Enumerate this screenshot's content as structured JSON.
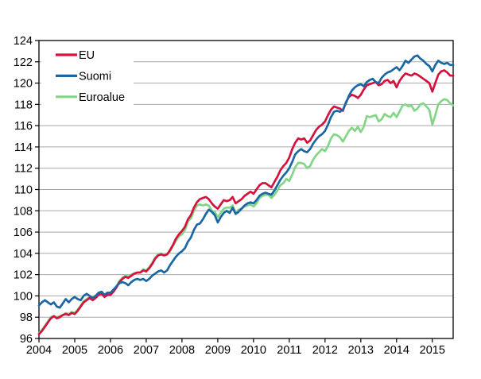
{
  "chart_data": {
    "type": "line",
    "title": "",
    "x_start": "2004-01",
    "x_end": "2015-08",
    "x_unit": "month",
    "x_tick_labels": [
      "2004",
      "2005",
      "2006",
      "2007",
      "2008",
      "2009",
      "2010",
      "2011",
      "2012",
      "2013",
      "2014",
      "2015"
    ],
    "y_tick_labels": [
      "96",
      "98",
      "100",
      "102",
      "104",
      "106",
      "108",
      "110",
      "112",
      "114",
      "116",
      "118",
      "120",
      "122",
      "124"
    ],
    "ylim": [
      96,
      124
    ],
    "y_tick_step": 2,
    "grid": "horizontal",
    "legend_position": "top-left-inside",
    "axis_color": "#000000",
    "gridline_color": "#a8a8a8",
    "background_color": "#ffffff",
    "series": [
      {
        "name": "Euroalue",
        "legend_order": 3,
        "color": "#84d687",
        "values": [
          96.5,
          96.8,
          97.2,
          97.6,
          98.0,
          98.1,
          98.0,
          98.1,
          98.2,
          98.4,
          98.3,
          98.5,
          98.4,
          98.7,
          99.1,
          99.5,
          99.7,
          99.9,
          99.7,
          99.9,
          100.2,
          100.3,
          100.0,
          100.2,
          100.2,
          100.5,
          100.9,
          101.4,
          101.7,
          101.9,
          101.8,
          102.0,
          102.1,
          102.2,
          102.2,
          102.5,
          102.4,
          102.7,
          103.1,
          103.6,
          103.9,
          104.0,
          103.8,
          103.9,
          104.2,
          104.7,
          105.2,
          105.6,
          105.8,
          106.2,
          107.0,
          107.3,
          108.0,
          108.5,
          108.6,
          108.5,
          108.6,
          108.5,
          108.0,
          107.9,
          107.4,
          107.8,
          108.2,
          108.3,
          108.3,
          108.5,
          107.8,
          108.1,
          108.2,
          108.4,
          108.5,
          108.6,
          108.4,
          108.7,
          109.2,
          109.4,
          109.5,
          109.5,
          109.2,
          109.5,
          109.9,
          110.4,
          110.6,
          111.0,
          110.8,
          111.4,
          112.1,
          112.5,
          112.5,
          112.4,
          112.0,
          112.2,
          112.8,
          113.2,
          113.5,
          113.8,
          113.6,
          114.1,
          114.8,
          115.2,
          115.1,
          114.9,
          114.5,
          115.0,
          115.5,
          115.8,
          115.5,
          115.9,
          115.4,
          115.9,
          116.9,
          116.8,
          116.9,
          117.0,
          116.4,
          116.6,
          117.1,
          116.9,
          116.8,
          117.2,
          116.8,
          117.3,
          117.9,
          118.0,
          117.8,
          117.9,
          117.4,
          117.6,
          118.0,
          118.1,
          117.8,
          117.5,
          116.1,
          117.0,
          118.0,
          118.3,
          118.5,
          118.4,
          118.1,
          117.9
        ]
      },
      {
        "name": "EU",
        "legend_order": 1,
        "color": "#d5123e",
        "values": [
          96.4,
          96.7,
          97.1,
          97.5,
          97.9,
          98.1,
          97.9,
          98.0,
          98.2,
          98.3,
          98.2,
          98.4,
          98.3,
          98.6,
          99.0,
          99.4,
          99.6,
          99.8,
          99.6,
          99.8,
          100.1,
          100.2,
          99.9,
          100.1,
          100.1,
          100.4,
          100.8,
          101.3,
          101.6,
          101.8,
          101.7,
          101.9,
          102.1,
          102.2,
          102.2,
          102.4,
          102.3,
          102.6,
          103.0,
          103.5,
          103.8,
          103.9,
          103.8,
          103.9,
          104.3,
          104.8,
          105.4,
          105.8,
          106.1,
          106.5,
          107.2,
          107.6,
          108.3,
          108.8,
          109.1,
          109.2,
          109.3,
          109.1,
          108.7,
          108.4,
          108.2,
          108.6,
          109.0,
          108.9,
          109.0,
          109.3,
          108.7,
          108.9,
          109.1,
          109.4,
          109.6,
          109.8,
          109.6,
          110.0,
          110.4,
          110.6,
          110.6,
          110.4,
          110.2,
          110.7,
          111.2,
          111.8,
          112.2,
          112.5,
          113.0,
          113.8,
          114.4,
          114.8,
          114.7,
          114.8,
          114.4,
          114.6,
          115.1,
          115.6,
          115.9,
          116.1,
          116.4,
          117.0,
          117.5,
          117.8,
          117.7,
          117.6,
          117.4,
          118.2,
          118.7,
          118.9,
          118.8,
          118.6,
          118.9,
          119.4,
          119.8,
          119.9,
          120.0,
          120.1,
          119.8,
          119.9,
          120.2,
          120.3,
          120.0,
          120.2,
          119.6,
          120.2,
          120.6,
          120.9,
          120.8,
          120.7,
          120.9,
          120.8,
          120.6,
          120.4,
          120.2,
          120.0,
          119.2,
          120.0,
          120.8,
          121.1,
          121.2,
          121.0,
          120.7,
          120.7
        ]
      },
      {
        "name": "Suomi",
        "legend_order": 2,
        "color": "#1b67a5",
        "values": [
          99.1,
          99.4,
          99.6,
          99.4,
          99.2,
          99.4,
          99.0,
          98.9,
          99.3,
          99.7,
          99.4,
          99.7,
          99.9,
          99.7,
          99.6,
          100.0,
          100.2,
          100.0,
          99.8,
          100.0,
          100.3,
          100.4,
          100.1,
          100.3,
          100.3,
          100.6,
          100.9,
          101.2,
          101.3,
          101.2,
          101.0,
          101.3,
          101.5,
          101.6,
          101.5,
          101.6,
          101.4,
          101.6,
          101.9,
          102.1,
          102.3,
          102.4,
          102.2,
          102.4,
          102.9,
          103.3,
          103.7,
          104.0,
          104.2,
          104.5,
          105.1,
          105.5,
          106.2,
          106.7,
          106.8,
          107.2,
          107.7,
          108.1,
          107.9,
          107.6,
          106.9,
          107.4,
          107.8,
          108.0,
          107.8,
          108.3,
          107.7,
          107.9,
          108.2,
          108.5,
          108.7,
          108.8,
          108.7,
          109.0,
          109.4,
          109.6,
          109.7,
          109.6,
          109.5,
          109.9,
          110.4,
          110.9,
          111.3,
          111.6,
          112.0,
          112.6,
          113.3,
          113.6,
          113.8,
          113.6,
          113.5,
          113.8,
          114.3,
          114.7,
          115.0,
          115.2,
          115.5,
          116.1,
          116.8,
          117.3,
          117.4,
          117.3,
          117.5,
          118.1,
          118.8,
          119.3,
          119.6,
          119.8,
          119.9,
          119.7,
          120.1,
          120.3,
          120.4,
          120.1,
          120.0,
          120.5,
          120.8,
          121.0,
          121.1,
          121.3,
          121.5,
          121.2,
          121.6,
          122.1,
          121.9,
          122.2,
          122.5,
          122.6,
          122.3,
          122.1,
          121.8,
          121.6,
          121.1,
          121.7,
          122.1,
          121.9,
          121.8,
          121.9,
          121.7,
          121.7
        ]
      }
    ],
    "legend": {
      "items": [
        "EU",
        "Suomi",
        "Euroalue"
      ]
    }
  }
}
